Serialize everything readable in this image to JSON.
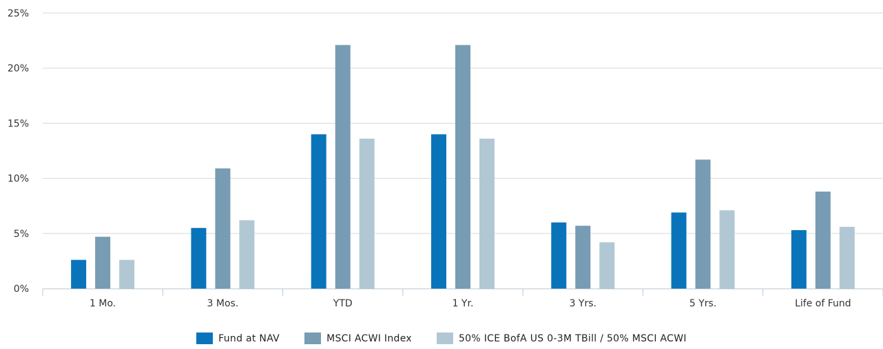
{
  "chart_data": {
    "type": "bar",
    "categories": [
      "1 Mo.",
      "3 Mos.",
      "YTD",
      "1 Yr.",
      "3 Yrs.",
      "5 Yrs.",
      "Life of Fund"
    ],
    "series": [
      {
        "name": "Fund at NAV",
        "color": "#0a74bb",
        "values": [
          2.6,
          5.5,
          14.0,
          14.0,
          6.0,
          6.9,
          5.3
        ]
      },
      {
        "name": "MSCI ACWI Index",
        "color": "#779cb3",
        "values": [
          4.7,
          10.9,
          22.1,
          22.1,
          5.7,
          11.7,
          8.8
        ]
      },
      {
        "name": "50% ICE BofA US 0-3M TBill / 50% MSCI ACWI",
        "color": "#b1c8d4",
        "values": [
          2.6,
          6.2,
          13.6,
          13.6,
          4.2,
          7.1,
          5.6
        ]
      }
    ],
    "yticks": [
      "0%",
      "5%",
      "10%",
      "15%",
      "20%",
      "25%"
    ],
    "ylim": [
      0,
      25
    ],
    "grid": true,
    "legend_position": "bottom-center"
  }
}
